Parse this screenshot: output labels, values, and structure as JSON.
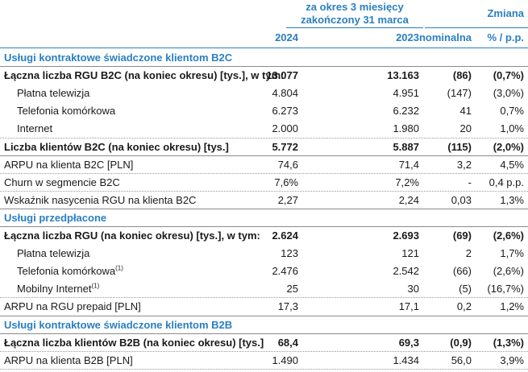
{
  "header": {
    "period_line1": "za okres 3 miesięcy",
    "period_line2": "zakończony 31 marca",
    "change_label": "Zmiana",
    "col_2024": "2024",
    "col_2023": "2023",
    "col_nominal": "nominalna",
    "col_pct": "% / p.p."
  },
  "rows": [
    {
      "label": "Usługi kontraktowe świadczone klientom B2C",
      "type": "section"
    },
    {
      "label": "Łączna liczba RGU B2C (na koniec okresu) [tys.], w tym:",
      "v2024": "13.077",
      "v2023": "13.163",
      "nominal": "(86)",
      "pct": "(0,7%)",
      "type": "bold"
    },
    {
      "label": "Płatna telewizja",
      "v2024": "4.804",
      "v2023": "4.951",
      "nominal": "(147)",
      "pct": "(3,0%)",
      "type": "indent"
    },
    {
      "label": "Telefonia komórkowa",
      "v2024": "6.273",
      "v2023": "6.232",
      "nominal": "41",
      "pct": "0,7%",
      "type": "indent"
    },
    {
      "label": "Internet",
      "v2024": "2.000",
      "v2023": "1.980",
      "nominal": "20",
      "pct": "1,0%",
      "type": "indent"
    },
    {
      "label": "Liczba klientów B2C (na koniec okresu) [tys.]",
      "v2024": "5.772",
      "v2023": "5.887",
      "nominal": "(115)",
      "pct": "(2,0%)",
      "type": "bold"
    },
    {
      "label": "ARPU na klienta B2C [PLN]",
      "v2024": "74,6",
      "v2023": "71,4",
      "nominal": "3,2",
      "pct": "4,5%",
      "type": "normal"
    },
    {
      "label": "Churn w segmencie B2C",
      "v2024": "7,6%",
      "v2023": "7,2%",
      "nominal": "-",
      "pct": "0,4 p.p.",
      "type": "normal"
    },
    {
      "label": "Wskaźnik nasycenia RGU na klienta B2C",
      "v2024": "2,27",
      "v2023": "2,24",
      "nominal": "0,03",
      "pct": "1,3%",
      "type": "normal"
    },
    {
      "label": "Usługi przedpłacone",
      "type": "section"
    },
    {
      "label": "Łączna liczba RGU (na koniec okresu) [tys.], w tym:",
      "v2024": "2.624",
      "v2023": "2.693",
      "nominal": "(69)",
      "pct": "(2,6%)",
      "type": "bold"
    },
    {
      "label": "Płatna telewizja",
      "v2024": "123",
      "v2023": "121",
      "nominal": "2",
      "pct": "1,7%",
      "type": "indent"
    },
    {
      "label": "Telefonia komórkowa",
      "sup": "(1)",
      "v2024": "2.476",
      "v2023": "2.542",
      "nominal": "(66)",
      "pct": "(2,6%)",
      "type": "indent"
    },
    {
      "label": "Mobilny Internet",
      "sup": "(1)",
      "v2024": "25",
      "v2023": "30",
      "nominal": "(5)",
      "pct": "(16,7%)",
      "type": "indent"
    },
    {
      "label": "ARPU na RGU prepaid [PLN]",
      "v2024": "17,3",
      "v2023": "17,1",
      "nominal": "0,2",
      "pct": "1,2%",
      "type": "normal"
    },
    {
      "label": "Usługi kontraktowe świadczone klientom B2B",
      "type": "section"
    },
    {
      "label": "Łączna liczba klientów B2B (na koniec okresu) [tys.]",
      "v2024": "68,4",
      "v2023": "69,3",
      "nominal": "(0,9)",
      "pct": "(1,3%)",
      "type": "bold"
    },
    {
      "label": "ARPU na klienta B2B [PLN]",
      "v2024": "1.490",
      "v2023": "1.434",
      "nominal": "56,0",
      "pct": "3,9%",
      "type": "normal"
    }
  ],
  "colors": {
    "accent": "#2a7fc1",
    "text": "#1a1a1a",
    "rule": "#8a8a8a"
  }
}
